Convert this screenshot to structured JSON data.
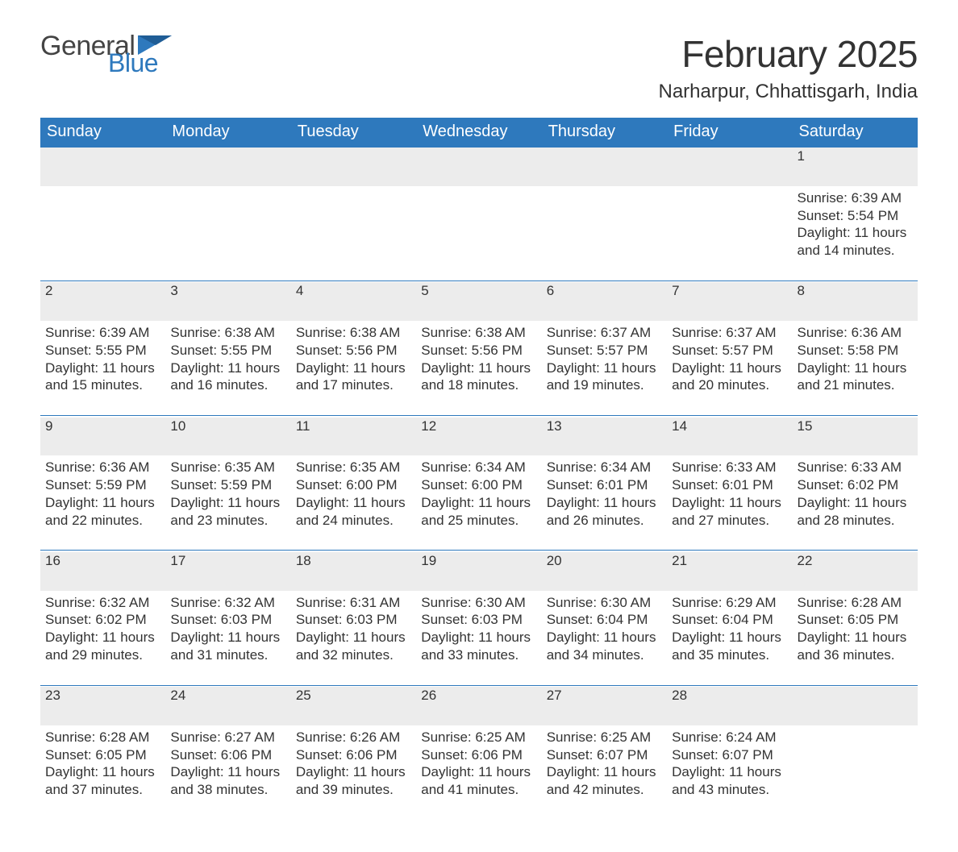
{
  "logo": {
    "word1": "General",
    "word2": "Blue",
    "text_color": "#444444",
    "accent_color": "#2e79bd"
  },
  "title": "February 2025",
  "location": "Narharpur, Chhattisgarh, India",
  "colors": {
    "header_bg": "#2e79bd",
    "header_text": "#ffffff",
    "daynum_bg": "#ececec",
    "body_text": "#333333",
    "separator": "#2e79bd",
    "page_bg": "#ffffff"
  },
  "weekdays": [
    "Sunday",
    "Monday",
    "Tuesday",
    "Wednesday",
    "Thursday",
    "Friday",
    "Saturday"
  ],
  "weeks": [
    [
      {
        "empty": true
      },
      {
        "empty": true
      },
      {
        "empty": true
      },
      {
        "empty": true
      },
      {
        "empty": true
      },
      {
        "empty": true
      },
      {
        "num": "1",
        "sunrise": "Sunrise: 6:39 AM",
        "sunset": "Sunset: 5:54 PM",
        "daylight": "Daylight: 11 hours and 14 minutes."
      }
    ],
    [
      {
        "num": "2",
        "sunrise": "Sunrise: 6:39 AM",
        "sunset": "Sunset: 5:55 PM",
        "daylight": "Daylight: 11 hours and 15 minutes."
      },
      {
        "num": "3",
        "sunrise": "Sunrise: 6:38 AM",
        "sunset": "Sunset: 5:55 PM",
        "daylight": "Daylight: 11 hours and 16 minutes."
      },
      {
        "num": "4",
        "sunrise": "Sunrise: 6:38 AM",
        "sunset": "Sunset: 5:56 PM",
        "daylight": "Daylight: 11 hours and 17 minutes."
      },
      {
        "num": "5",
        "sunrise": "Sunrise: 6:38 AM",
        "sunset": "Sunset: 5:56 PM",
        "daylight": "Daylight: 11 hours and 18 minutes."
      },
      {
        "num": "6",
        "sunrise": "Sunrise: 6:37 AM",
        "sunset": "Sunset: 5:57 PM",
        "daylight": "Daylight: 11 hours and 19 minutes."
      },
      {
        "num": "7",
        "sunrise": "Sunrise: 6:37 AM",
        "sunset": "Sunset: 5:57 PM",
        "daylight": "Daylight: 11 hours and 20 minutes."
      },
      {
        "num": "8",
        "sunrise": "Sunrise: 6:36 AM",
        "sunset": "Sunset: 5:58 PM",
        "daylight": "Daylight: 11 hours and 21 minutes."
      }
    ],
    [
      {
        "num": "9",
        "sunrise": "Sunrise: 6:36 AM",
        "sunset": "Sunset: 5:59 PM",
        "daylight": "Daylight: 11 hours and 22 minutes."
      },
      {
        "num": "10",
        "sunrise": "Sunrise: 6:35 AM",
        "sunset": "Sunset: 5:59 PM",
        "daylight": "Daylight: 11 hours and 23 minutes."
      },
      {
        "num": "11",
        "sunrise": "Sunrise: 6:35 AM",
        "sunset": "Sunset: 6:00 PM",
        "daylight": "Daylight: 11 hours and 24 minutes."
      },
      {
        "num": "12",
        "sunrise": "Sunrise: 6:34 AM",
        "sunset": "Sunset: 6:00 PM",
        "daylight": "Daylight: 11 hours and 25 minutes."
      },
      {
        "num": "13",
        "sunrise": "Sunrise: 6:34 AM",
        "sunset": "Sunset: 6:01 PM",
        "daylight": "Daylight: 11 hours and 26 minutes."
      },
      {
        "num": "14",
        "sunrise": "Sunrise: 6:33 AM",
        "sunset": "Sunset: 6:01 PM",
        "daylight": "Daylight: 11 hours and 27 minutes."
      },
      {
        "num": "15",
        "sunrise": "Sunrise: 6:33 AM",
        "sunset": "Sunset: 6:02 PM",
        "daylight": "Daylight: 11 hours and 28 minutes."
      }
    ],
    [
      {
        "num": "16",
        "sunrise": "Sunrise: 6:32 AM",
        "sunset": "Sunset: 6:02 PM",
        "daylight": "Daylight: 11 hours and 29 minutes."
      },
      {
        "num": "17",
        "sunrise": "Sunrise: 6:32 AM",
        "sunset": "Sunset: 6:03 PM",
        "daylight": "Daylight: 11 hours and 31 minutes."
      },
      {
        "num": "18",
        "sunrise": "Sunrise: 6:31 AM",
        "sunset": "Sunset: 6:03 PM",
        "daylight": "Daylight: 11 hours and 32 minutes."
      },
      {
        "num": "19",
        "sunrise": "Sunrise: 6:30 AM",
        "sunset": "Sunset: 6:03 PM",
        "daylight": "Daylight: 11 hours and 33 minutes."
      },
      {
        "num": "20",
        "sunrise": "Sunrise: 6:30 AM",
        "sunset": "Sunset: 6:04 PM",
        "daylight": "Daylight: 11 hours and 34 minutes."
      },
      {
        "num": "21",
        "sunrise": "Sunrise: 6:29 AM",
        "sunset": "Sunset: 6:04 PM",
        "daylight": "Daylight: 11 hours and 35 minutes."
      },
      {
        "num": "22",
        "sunrise": "Sunrise: 6:28 AM",
        "sunset": "Sunset: 6:05 PM",
        "daylight": "Daylight: 11 hours and 36 minutes."
      }
    ],
    [
      {
        "num": "23",
        "sunrise": "Sunrise: 6:28 AM",
        "sunset": "Sunset: 6:05 PM",
        "daylight": "Daylight: 11 hours and 37 minutes."
      },
      {
        "num": "24",
        "sunrise": "Sunrise: 6:27 AM",
        "sunset": "Sunset: 6:06 PM",
        "daylight": "Daylight: 11 hours and 38 minutes."
      },
      {
        "num": "25",
        "sunrise": "Sunrise: 6:26 AM",
        "sunset": "Sunset: 6:06 PM",
        "daylight": "Daylight: 11 hours and 39 minutes."
      },
      {
        "num": "26",
        "sunrise": "Sunrise: 6:25 AM",
        "sunset": "Sunset: 6:06 PM",
        "daylight": "Daylight: 11 hours and 41 minutes."
      },
      {
        "num": "27",
        "sunrise": "Sunrise: 6:25 AM",
        "sunset": "Sunset: 6:07 PM",
        "daylight": "Daylight: 11 hours and 42 minutes."
      },
      {
        "num": "28",
        "sunrise": "Sunrise: 6:24 AM",
        "sunset": "Sunset: 6:07 PM",
        "daylight": "Daylight: 11 hours and 43 minutes."
      },
      {
        "empty": true
      }
    ]
  ]
}
